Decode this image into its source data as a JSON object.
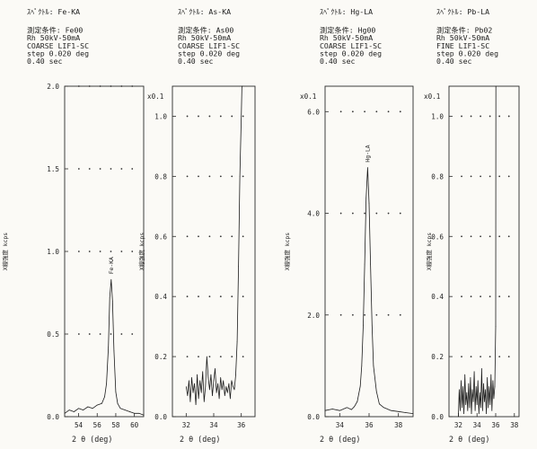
{
  "chart_data": [
    {
      "type": "line",
      "header": [
        "ｽﾍﾟｸﾄﾙ: Fe-KA",
        "測定条件: Fe00",
        "Rh 50kV-50mA",
        "COARSE LIF1-SC",
        "step 0.020 deg",
        "0.40  sec"
      ],
      "multiplier": "",
      "ylabel": "X線強度 kcps",
      "xlabel": "2 θ (deg)",
      "xlim": [
        52.5,
        61.0
      ],
      "ylim": [
        0.0,
        2.0
      ],
      "yticks": [
        "0.0",
        "0.5",
        "1.0",
        "1.5",
        "2.0"
      ],
      "xticks": [
        "54",
        "56",
        "58",
        "60"
      ],
      "peak_label": "Fe-KA",
      "peak_x": 57.5,
      "series": [
        {
          "x": [
            52.5,
            53.0,
            53.5,
            54.0,
            54.5,
            55.0,
            55.5,
            56.0,
            56.5,
            56.8,
            57.0,
            57.2,
            57.35,
            57.5,
            57.65,
            57.8,
            58.0,
            58.2,
            58.5,
            59.0,
            59.5,
            60.0,
            60.5,
            61.0
          ],
          "y": [
            0.02,
            0.04,
            0.03,
            0.05,
            0.04,
            0.06,
            0.05,
            0.07,
            0.08,
            0.12,
            0.2,
            0.42,
            0.72,
            0.83,
            0.7,
            0.4,
            0.15,
            0.08,
            0.05,
            0.04,
            0.03,
            0.02,
            0.02,
            0.01
          ]
        }
      ]
    },
    {
      "type": "line",
      "header": [
        "ｽﾍﾟｸﾄﾙ: As-KA",
        "測定条件: As00",
        "Rh 50kV-50mA",
        "COARSE LIF1-SC",
        "step 0.020 deg",
        "0.40  sec"
      ],
      "multiplier": "x0.1",
      "ylabel": "X線強度 kcps",
      "xlabel": "2 θ (deg)",
      "xlim": [
        31.0,
        37.0
      ],
      "ylim": [
        0.0,
        1.1
      ],
      "yticks": [
        "0.0",
        "0.2",
        "0.4",
        "0.6",
        "0.8",
        "1.0"
      ],
      "xticks": [
        "32",
        "34",
        "36"
      ],
      "peak_label": "",
      "peak_x": null,
      "series": [
        {
          "x": [
            32.0,
            32.1,
            32.2,
            32.3,
            32.4,
            32.5,
            32.6,
            32.7,
            32.8,
            32.9,
            33.0,
            33.1,
            33.2,
            33.3,
            33.4,
            33.5,
            33.6,
            33.7,
            33.8,
            33.9,
            34.0,
            34.1,
            34.2,
            34.3,
            34.4,
            34.5,
            34.6,
            34.7,
            34.8,
            34.9,
            35.0,
            35.1,
            35.2,
            35.3,
            35.4,
            35.5,
            35.6,
            35.7,
            35.8,
            35.9,
            36.0,
            36.05,
            36.1
          ],
          "y": [
            0.1,
            0.07,
            0.12,
            0.05,
            0.13,
            0.08,
            0.11,
            0.04,
            0.14,
            0.06,
            0.12,
            0.08,
            0.15,
            0.05,
            0.1,
            0.2,
            0.13,
            0.09,
            0.14,
            0.07,
            0.12,
            0.16,
            0.08,
            0.11,
            0.06,
            0.13,
            0.09,
            0.12,
            0.07,
            0.1,
            0.08,
            0.11,
            0.06,
            0.12,
            0.1,
            0.09,
            0.14,
            0.25,
            0.5,
            0.8,
            1.0,
            1.1,
            1.1
          ]
        }
      ]
    },
    {
      "type": "line",
      "header": [
        "ｽﾍﾟｸﾄﾙ: Hg-LA",
        "測定条件: Hg00",
        "Rh 50kV-50mA",
        "COARSE LIF1-SC",
        "step 0.020 deg",
        "0.40  sec"
      ],
      "multiplier": "x0.1",
      "ylabel": "X線強度 kcps",
      "xlabel": "2 θ (deg)",
      "xlim": [
        33.0,
        39.0
      ],
      "ylim": [
        0.0,
        6.5
      ],
      "yticks": [
        "0.0",
        "2.0",
        "4.0",
        "6.0"
      ],
      "xticks": [
        "34",
        "36",
        "38"
      ],
      "peak_label": "Hg-LA",
      "peak_x": 35.9,
      "series": [
        {
          "x": [
            33.0,
            33.5,
            34.0,
            34.5,
            34.8,
            35.0,
            35.2,
            35.4,
            35.5,
            35.6,
            35.7,
            35.8,
            35.9,
            36.0,
            36.1,
            36.2,
            36.3,
            36.5,
            36.7,
            37.0,
            37.5,
            38.0,
            38.5,
            39.0
          ],
          "y": [
            0.12,
            0.15,
            0.12,
            0.18,
            0.14,
            0.2,
            0.3,
            0.6,
            1.0,
            1.8,
            3.0,
            4.3,
            4.9,
            4.2,
            3.0,
            1.8,
            1.0,
            0.5,
            0.25,
            0.18,
            0.12,
            0.1,
            0.08,
            0.06
          ]
        }
      ]
    },
    {
      "type": "line",
      "header": [
        "ｽﾍﾟｸﾄﾙ: Pb-LA",
        "測定条件: Pb02",
        "Rh 50kV-50mA",
        "FINE   LIF1-SC",
        "step 0.020 deg",
        "0.40  sec"
      ],
      "multiplier": "x0.1",
      "ylabel": "X線強度 kcps",
      "xlabel": "2 θ (deg)",
      "xlim": [
        31.0,
        38.5
      ],
      "ylim": [
        0.0,
        1.1
      ],
      "yticks": [
        "0.0",
        "0.2",
        "0.4",
        "0.6",
        "0.8",
        "1.0"
      ],
      "xticks": [
        "32",
        "34",
        "36",
        "38"
      ],
      "peak_label": "",
      "peak_x": null,
      "series": [
        {
          "x": [
            32.0,
            32.1,
            32.2,
            32.3,
            32.4,
            32.5,
            32.6,
            32.7,
            32.8,
            32.9,
            33.0,
            33.1,
            33.2,
            33.3,
            33.4,
            33.5,
            33.6,
            33.7,
            33.8,
            33.9,
            34.0,
            34.1,
            34.2,
            34.3,
            34.4,
            34.5,
            34.6,
            34.7,
            34.8,
            34.9,
            35.0,
            35.1,
            35.2,
            35.3,
            35.4,
            35.5,
            35.6,
            35.7,
            35.8,
            35.9,
            36.0,
            36.02
          ],
          "y": [
            0.0,
            0.09,
            0.02,
            0.12,
            0.03,
            0.1,
            0.01,
            0.14,
            0.04,
            0.08,
            0.02,
            0.11,
            0.03,
            0.13,
            0.01,
            0.09,
            0.05,
            0.15,
            0.02,
            0.1,
            0.04,
            0.12,
            0.01,
            0.08,
            0.03,
            0.16,
            0.02,
            0.11,
            0.05,
            0.09,
            0.01,
            0.13,
            0.03,
            0.1,
            0.04,
            0.14,
            0.02,
            0.12,
            0.06,
            0.1,
            0.3,
            1.1
          ]
        }
      ]
    }
  ]
}
